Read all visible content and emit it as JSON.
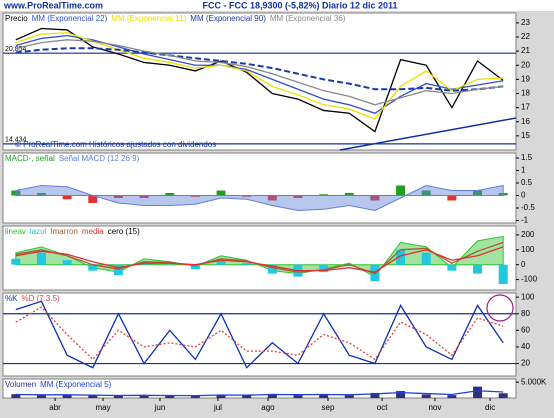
{
  "header": {
    "site": "www.ProRealTime.com",
    "title": "FCC - FCC   18,9300 (-5,82%)   Diario  12 dic 2011",
    "note": "© ProRealTime.com Históricos ajustados con dividendos"
  },
  "chart_data": [
    {
      "type": "line",
      "xlim": [
        -0.5,
        19.5
      ],
      "ylim": [
        14,
        23.7
      ],
      "yticks": [
        15,
        16,
        17,
        18,
        19,
        20,
        21,
        22,
        23
      ],
      "hlines": [
        {
          "value": 20.854,
          "label": "20,854"
        },
        {
          "value": 14.434,
          "label": "14,434"
        }
      ],
      "series": [
        {
          "name": "Precio",
          "color": "#000000",
          "style": "line",
          "values": [
            21.8,
            22.6,
            22.5,
            21.3,
            20.8,
            20.2,
            20.0,
            19.6,
            20.3,
            19.5,
            18.0,
            17.6,
            16.8,
            16.6,
            15.3,
            20.4,
            20.0,
            17.0,
            20.3,
            18.93
          ]
        },
        {
          "name": "MM (Exponencial 22)",
          "color": "#3050d0",
          "style": "line",
          "values": [
            21.4,
            21.9,
            22.1,
            21.8,
            21.3,
            20.8,
            20.4,
            20.0,
            20.0,
            19.7,
            19.0,
            18.3,
            17.6,
            17.2,
            16.6,
            17.8,
            18.7,
            18.3,
            18.6,
            18.9
          ]
        },
        {
          "name": "MM (Exponencial 11)",
          "color": "#e8e000",
          "style": "line",
          "values": [
            21.6,
            22.2,
            22.3,
            21.7,
            21.1,
            20.5,
            20.2,
            19.8,
            20.0,
            19.6,
            18.5,
            17.9,
            17.2,
            16.9,
            16.2,
            18.5,
            19.6,
            18.2,
            19.0,
            19.1
          ]
        },
        {
          "name": "MM (Exponencial 90)",
          "color": "#1a3aa8",
          "style": "dashed",
          "values": [
            20.9,
            21.1,
            21.2,
            21.2,
            21.1,
            20.9,
            20.7,
            20.5,
            20.3,
            20.1,
            19.8,
            19.4,
            19.0,
            18.7,
            18.3,
            18.3,
            18.4,
            18.2,
            18.3,
            18.5
          ]
        },
        {
          "name": "MM (Exponencial 36)",
          "color": "#888888",
          "style": "line",
          "values": [
            21.2,
            21.6,
            21.8,
            21.7,
            21.4,
            21.0,
            20.7,
            20.3,
            20.2,
            19.9,
            19.4,
            18.8,
            18.2,
            17.8,
            17.2,
            17.7,
            18.2,
            18.0,
            18.3,
            18.5
          ]
        }
      ]
    },
    {
      "type": "line",
      "xlim": [
        -0.5,
        19.5
      ],
      "ylim": [
        -1.1,
        1.7
      ],
      "yticks": [
        1.5,
        1,
        0.5,
        0,
        -0.5,
        -1
      ],
      "series": [
        {
          "name": "MACD-, señal",
          "color": "#20a020",
          "negative_color": "#e03030",
          "style": "bar",
          "values": [
            0.2,
            0.1,
            -0.15,
            -0.3,
            -0.1,
            -0.1,
            0.1,
            -0.05,
            0.2,
            -0.05,
            -0.2,
            -0.1,
            0.05,
            0.1,
            -0.2,
            0.4,
            0.2,
            -0.2,
            0.2,
            0.1
          ]
        },
        {
          "name": "Señal MACD (12 26 9)",
          "color": "#6080d8",
          "style": "area",
          "values": [
            0.2,
            0.4,
            0.35,
            0.0,
            -0.3,
            -0.4,
            -0.4,
            -0.35,
            -0.1,
            -0.15,
            -0.4,
            -0.6,
            -0.55,
            -0.4,
            -0.6,
            -0.1,
            0.4,
            0.2,
            0.2,
            0.4
          ]
        }
      ]
    },
    {
      "type": "line",
      "xlim": [
        -0.5,
        19.5
      ],
      "ylim": [
        -170,
        260
      ],
      "yticks": [
        200,
        100,
        0,
        -100
      ],
      "series": [
        {
          "name": "lineav",
          "color": "#30c030",
          "style": "area",
          "values": [
            80,
            120,
            60,
            -20,
            -50,
            40,
            20,
            -10,
            60,
            30,
            -40,
            -60,
            -30,
            10,
            -80,
            150,
            120,
            -20,
            160,
            190
          ]
        },
        {
          "name": "lazul",
          "color": "#20c8e0",
          "style": "bar",
          "values": [
            40,
            80,
            30,
            -40,
            -70,
            10,
            0,
            -30,
            30,
            10,
            -60,
            -80,
            -50,
            -10,
            -110,
            100,
            80,
            -40,
            -60,
            -130
          ]
        },
        {
          "name": "Imarron",
          "color": "#a06030",
          "style": "line",
          "values": [
            70,
            100,
            60,
            0,
            -30,
            20,
            15,
            -5,
            40,
            25,
            -20,
            -50,
            -35,
            0,
            -60,
            100,
            110,
            10,
            90,
            150
          ]
        },
        {
          "name": "media",
          "color": "#e03030",
          "style": "line",
          "values": [
            60,
            90,
            70,
            20,
            -20,
            10,
            10,
            0,
            30,
            20,
            -10,
            -40,
            -40,
            -20,
            -50,
            60,
            100,
            30,
            60,
            120
          ]
        }
      ],
      "legend_suffix": "cero (15)"
    },
    {
      "type": "line",
      "xlim": [
        -0.5,
        19.5
      ],
      "ylim": [
        5,
        105
      ],
      "yticks": [
        100,
        80,
        60,
        40,
        20
      ],
      "hlines": [
        80,
        20
      ],
      "series": [
        {
          "name": "%K",
          "color": "#1030b0",
          "style": "line",
          "values": [
            85,
            95,
            30,
            15,
            80,
            20,
            60,
            25,
            80,
            15,
            45,
            20,
            80,
            30,
            20,
            90,
            40,
            25,
            90,
            45
          ]
        },
        {
          "name": "%D (7.3.5)",
          "color": "#e04040",
          "style": "dotted",
          "values": [
            70,
            88,
            55,
            25,
            60,
            40,
            45,
            40,
            60,
            35,
            35,
            30,
            55,
            45,
            25,
            70,
            55,
            30,
            75,
            65
          ]
        }
      ]
    },
    {
      "type": "line",
      "xlim": [
        -0.5,
        19.5
      ],
      "ylim": [
        0,
        6000
      ],
      "yticks": [
        {
          "value": 5000,
          "label": "5.000K"
        }
      ],
      "xticks": [
        {
          "value": 1.53,
          "label": "abr"
        },
        {
          "value": 3.4,
          "label": "may"
        },
        {
          "value": 5.62,
          "label": "jun"
        },
        {
          "value": 7.88,
          "label": "jul"
        },
        {
          "value": 9.83,
          "label": "ago"
        },
        {
          "value": 12.17,
          "label": "sep"
        },
        {
          "value": 14.28,
          "label": "oct"
        },
        {
          "value": 16.34,
          "label": "nov"
        },
        {
          "value": 18.49,
          "label": "dic"
        }
      ],
      "series": [
        {
          "name": "Volumen",
          "color": "#303080",
          "style": "bar",
          "values": [
            1200,
            900,
            1000,
            800,
            700,
            900,
            800,
            700,
            1100,
            900,
            1300,
            1000,
            1200,
            900,
            1600,
            2200,
            1100,
            900,
            3600,
            1500
          ]
        },
        {
          "name": "MM (Exponencial 5)",
          "color": "#2040e0",
          "style": "line",
          "values": [
            1100,
            1000,
            1000,
            900,
            800,
            850,
            800,
            750,
            950,
            900,
            1100,
            1050,
            1100,
            1000,
            1300,
            1700,
            1400,
            1100,
            2300,
            1900
          ]
        }
      ]
    }
  ]
}
